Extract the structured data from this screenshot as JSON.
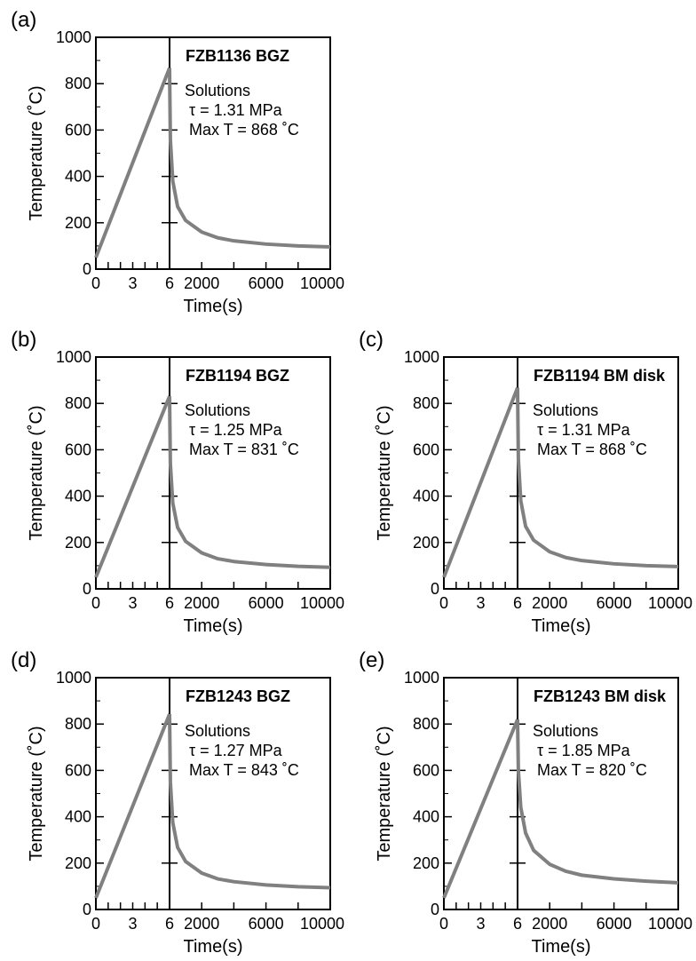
{
  "chart_data": [
    {
      "type": "line",
      "panel_label": "(a)",
      "title": "FZB1136 BGZ",
      "annotations": [
        "Solutions",
        "τ = 1.31 MPa",
        "Max T = 868 ˚C"
      ],
      "xlabel": "Time(s)",
      "ylabel": "Temperature (˚C)",
      "ylim": [
        0,
        1000
      ],
      "yticks": [
        "0",
        "200",
        "400",
        "600",
        "800",
        "1000"
      ],
      "xticks_heating": [
        "0",
        "3",
        "6"
      ],
      "xticks_cooling": [
        "2000",
        "6000",
        "10000"
      ],
      "xlim_heating": [
        0,
        6
      ],
      "xlim_cooling": [
        0,
        10000
      ],
      "series": [
        {
          "color": "#808080",
          "heating": {
            "x": [
              0,
              6
            ],
            "y": [
              50,
              868
            ]
          },
          "cooling": {
            "x": [
              0,
              50,
              200,
              500,
              1000,
              2000,
              3000,
              4000,
              6000,
              8000,
              10000
            ],
            "y": [
              868,
              560,
              380,
              270,
              210,
              160,
              135,
              122,
              108,
              100,
              96
            ]
          }
        }
      ]
    },
    {
      "type": "line",
      "panel_label": "(b)",
      "title": "FZB1194 BGZ",
      "annotations": [
        "Solutions",
        "τ = 1.25 MPa",
        "Max T = 831 ˚C"
      ],
      "xlabel": "Time(s)",
      "ylabel": "Temperature (˚C)",
      "ylim": [
        0,
        1000
      ],
      "yticks": [
        "0",
        "200",
        "400",
        "600",
        "800",
        "1000"
      ],
      "xticks_heating": [
        "0",
        "3",
        "6"
      ],
      "xticks_cooling": [
        "2000",
        "6000",
        "10000"
      ],
      "xlim_heating": [
        0,
        6
      ],
      "xlim_cooling": [
        0,
        10000
      ],
      "series": [
        {
          "color": "#808080",
          "heating": {
            "x": [
              0,
              6
            ],
            "y": [
              50,
              831
            ]
          },
          "cooling": {
            "x": [
              0,
              50,
              200,
              500,
              1000,
              2000,
              3000,
              4000,
              6000,
              8000,
              10000
            ],
            "y": [
              831,
              540,
              370,
              265,
              205,
              155,
              130,
              118,
              105,
              97,
              93
            ]
          }
        }
      ]
    },
    {
      "type": "line",
      "panel_label": "(c)",
      "title": "FZB1194 BM disk",
      "annotations": [
        "Solutions",
        "τ = 1.31 MPa",
        "Max T = 868 ˚C"
      ],
      "xlabel": "Time(s)",
      "ylabel": "Temperature (˚C)",
      "ylim": [
        0,
        1000
      ],
      "yticks": [
        "0",
        "200",
        "400",
        "600",
        "800",
        "1000"
      ],
      "xticks_heating": [
        "0",
        "3",
        "6"
      ],
      "xticks_cooling": [
        "2000",
        "6000",
        "10000"
      ],
      "xlim_heating": [
        0,
        6
      ],
      "xlim_cooling": [
        0,
        10000
      ],
      "series": [
        {
          "color": "#808080",
          "heating": {
            "x": [
              0,
              6
            ],
            "y": [
              50,
              868
            ]
          },
          "cooling": {
            "x": [
              0,
              50,
              200,
              500,
              1000,
              2000,
              3000,
              4000,
              6000,
              8000,
              10000
            ],
            "y": [
              868,
              560,
              380,
              270,
              210,
              160,
              135,
              122,
              108,
              100,
              96
            ]
          }
        }
      ]
    },
    {
      "type": "line",
      "panel_label": "(d)",
      "title": "FZB1243 BGZ",
      "annotations": [
        "Solutions",
        "τ = 1.27 MPa",
        "Max T = 843 ˚C"
      ],
      "xlabel": "Time(s)",
      "ylabel": "Temperature (˚C)",
      "ylim": [
        0,
        1000
      ],
      "yticks": [
        "0",
        "200",
        "400",
        "600",
        "800",
        "1000"
      ],
      "xticks_heating": [
        "0",
        "3",
        "6"
      ],
      "xticks_cooling": [
        "2000",
        "6000",
        "10000"
      ],
      "xlim_heating": [
        0,
        6
      ],
      "xlim_cooling": [
        0,
        10000
      ],
      "series": [
        {
          "color": "#808080",
          "heating": {
            "x": [
              0,
              6
            ],
            "y": [
              50,
              843
            ]
          },
          "cooling": {
            "x": [
              0,
              50,
              200,
              500,
              1000,
              2000,
              3000,
              4000,
              6000,
              8000,
              10000
            ],
            "y": [
              843,
              550,
              375,
              268,
              207,
              157,
              132,
              120,
              106,
              98,
              94
            ]
          }
        }
      ]
    },
    {
      "type": "line",
      "panel_label": "(e)",
      "title": "FZB1243 BM disk",
      "annotations": [
        "Solutions",
        "τ = 1.85 MPa",
        "Max T = 820 ˚C"
      ],
      "xlabel": "Time(s)",
      "ylabel": "Temperature (˚C)",
      "ylim": [
        0,
        1000
      ],
      "yticks": [
        "0",
        "200",
        "400",
        "600",
        "800",
        "1000"
      ],
      "xticks_heating": [
        "0",
        "3",
        "6"
      ],
      "xticks_cooling": [
        "2000",
        "6000",
        "10000"
      ],
      "xlim_heating": [
        0,
        6
      ],
      "xlim_cooling": [
        0,
        10000
      ],
      "series": [
        {
          "color": "#808080",
          "heating": {
            "x": [
              0,
              6
            ],
            "y": [
              50,
              820
            ]
          },
          "cooling": {
            "x": [
              0,
              50,
              200,
              500,
              1000,
              2000,
              3000,
              4000,
              6000,
              8000,
              10000
            ],
            "y": [
              820,
              600,
              440,
              330,
              255,
              195,
              165,
              148,
              132,
              122,
              115
            ]
          }
        }
      ]
    }
  ]
}
